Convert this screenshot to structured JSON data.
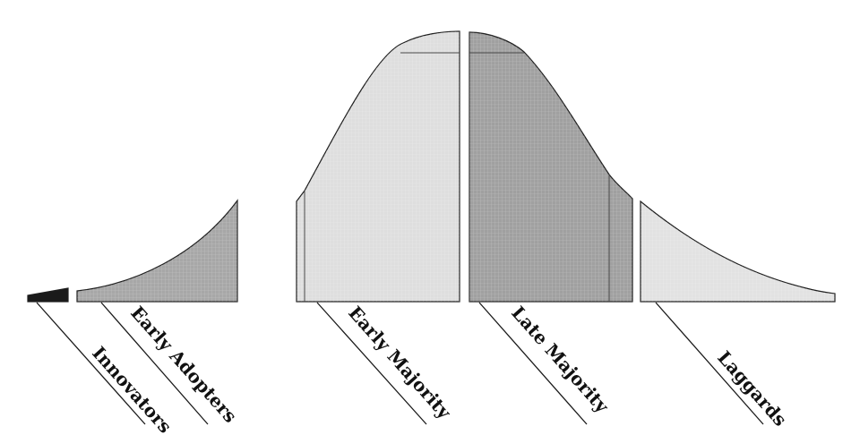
{
  "segments": [
    {
      "id": "innovators",
      "label": "Innovators",
      "fill": "#1a1a1a"
    },
    {
      "id": "early-adopters",
      "label": "Early Adopters",
      "fill": "#a7a7a7"
    },
    {
      "id": "early-majority",
      "label": "Early Majority",
      "fill": "#dedede"
    },
    {
      "id": "late-majority",
      "label": "Late Majority",
      "fill": "#a0a0a0"
    },
    {
      "id": "laggards",
      "label": "Laggards",
      "fill": "#e2e2e2"
    }
  ]
}
